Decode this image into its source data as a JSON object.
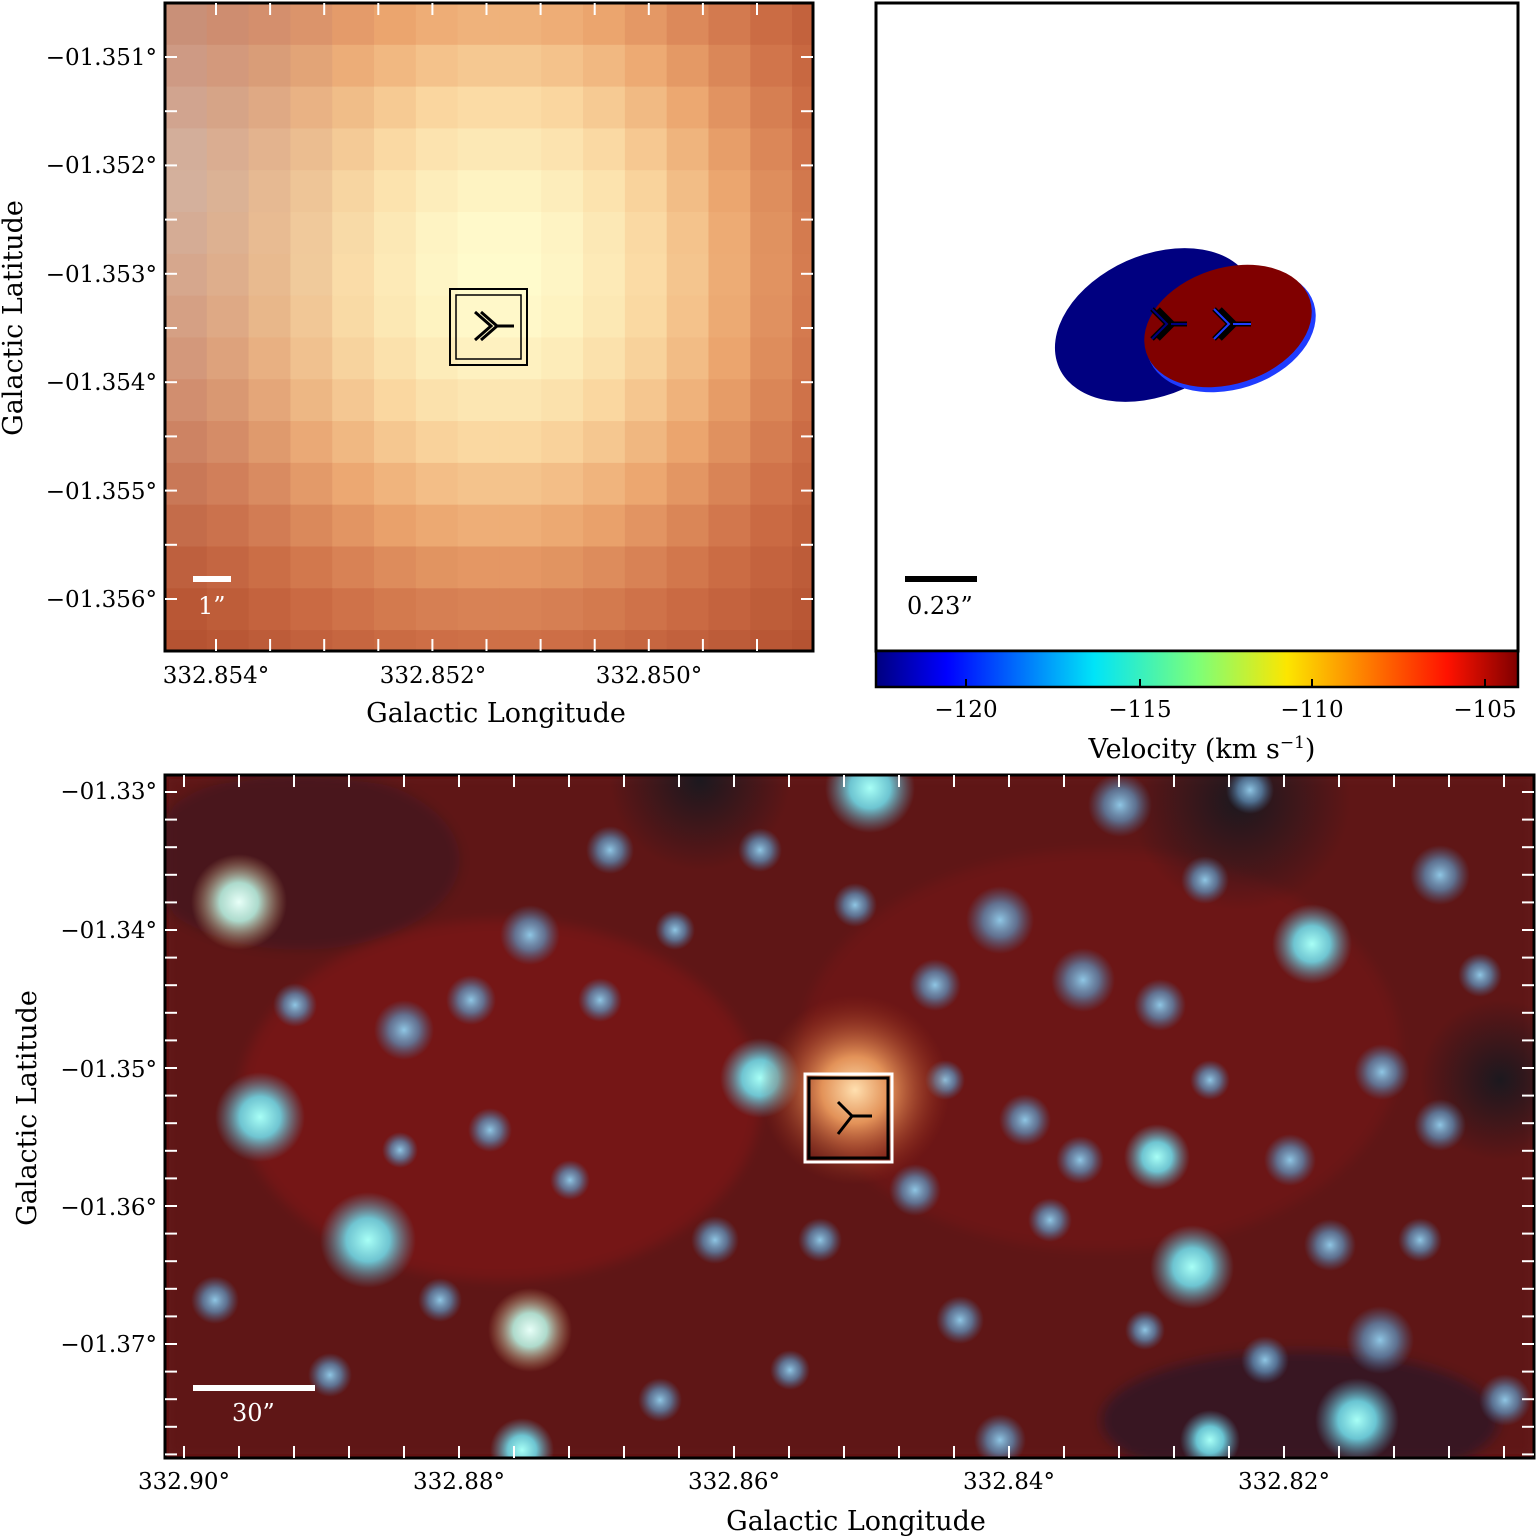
{
  "panel_top_left": {
    "xlabel": "Galactic Longitude",
    "ylabel": "Galactic Latitude",
    "x_ticks": [
      "332.854°",
      "332.852°",
      "332.850°"
    ],
    "y_ticks": [
      "−01.351°",
      "−01.352°",
      "−01.353°",
      "−01.354°",
      "−01.355°",
      "−01.356°"
    ],
    "scalebar_label": "1”"
  },
  "panel_top_right": {
    "scalebar_label": "0.23”",
    "colorbar": {
      "label_prefix": "Velocity (km s",
      "label_exponent": "−1",
      "label_suffix": ")",
      "ticks": [
        "−120",
        "−115",
        "−110",
        "−105"
      ],
      "colormap": "jet",
      "range": [
        -122.6,
        -103.9
      ]
    },
    "ellipses": [
      {
        "component": "blue-shifted",
        "color": "#000080"
      },
      {
        "component": "red-shifted",
        "color": "#800000",
        "edge_color": "#1f3cff"
      }
    ]
  },
  "panel_bottom": {
    "xlabel": "Galactic Longitude",
    "ylabel": "Galactic Latitude",
    "x_ticks": [
      "332.90°",
      "332.88°",
      "332.86°",
      "332.84°",
      "332.82°"
    ],
    "y_ticks": [
      "−01.33°",
      "−01.34°",
      "−01.35°",
      "−01.36°",
      "−01.37°"
    ],
    "scalebar_label": "30”"
  },
  "colors": {
    "background_red": "#6a1414",
    "star_cyan": "#7fe8f0",
    "warm_peak": "#fff6c0"
  }
}
